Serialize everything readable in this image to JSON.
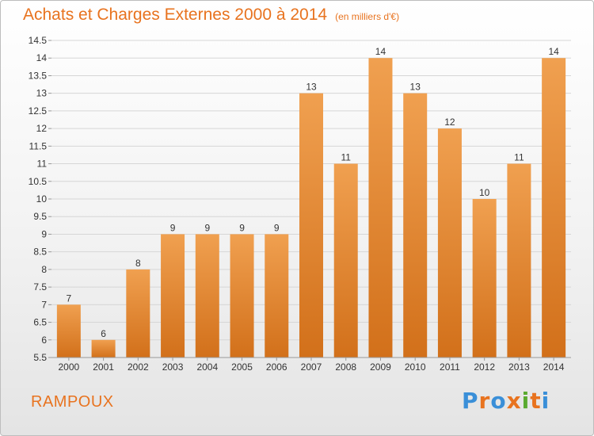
{
  "chart_data": {
    "type": "bar",
    "title": "Achats et Charges Externes 2000 à 2014",
    "subtitle": "(en milliers d'€)",
    "categories": [
      "2000",
      "2001",
      "2002",
      "2003",
      "2004",
      "2005",
      "2006",
      "2007",
      "2008",
      "2009",
      "2010",
      "2011",
      "2012",
      "2013",
      "2014"
    ],
    "values": [
      7,
      6,
      8,
      9,
      9,
      9,
      9,
      13,
      11,
      14,
      13,
      12,
      10,
      11,
      14
    ],
    "ylim": [
      5.5,
      14.5
    ],
    "yticks": [
      "5.5",
      "6",
      "6.5",
      "7",
      "7.5",
      "8",
      "8.5",
      "9",
      "9.5",
      "10",
      "10.5",
      "11",
      "11.5",
      "12",
      "12.5",
      "13",
      "13.5",
      "14",
      "14.5"
    ],
    "xlabel": "",
    "ylabel": "",
    "grid": true,
    "bar_color": "#f0a050",
    "bar_color_dark": "#d2701a"
  },
  "footer": {
    "place": "RAMPOUX",
    "logo": "Proxiti",
    "logo_colors": [
      "#3a8fd8",
      "#e8731f",
      "#3a8fd8",
      "#e8731f",
      "#5aaa30",
      "#e8731f",
      "#3a8fd8"
    ]
  }
}
